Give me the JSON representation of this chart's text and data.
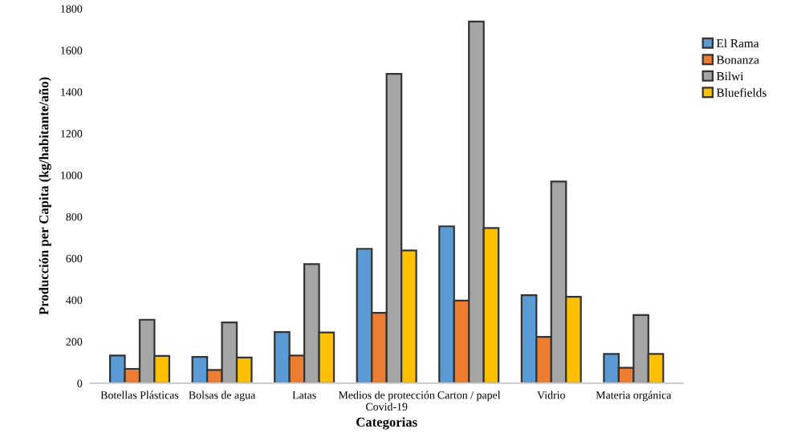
{
  "chart_data": {
    "type": "bar",
    "xlabel": "Categorias",
    "ylabel": "Producción per Capita (kg/habitante/año)",
    "categories": [
      "Botellas Plásticas",
      "Bolsas de agua",
      "Latas",
      "Medios de protección\nCovid-19",
      "Carton / papel",
      "Vidrio",
      "Materia orgánica"
    ],
    "series": [
      {
        "name": "El Rama",
        "color": "#5b9bd5",
        "values": [
          133,
          126,
          246,
          646,
          754,
          423,
          141
        ]
      },
      {
        "name": "Bonanza",
        "color": "#ed7d31",
        "values": [
          69,
          64,
          133,
          338,
          397,
          223,
          74
        ]
      },
      {
        "name": "Bilwi",
        "color": "#a5a5a5",
        "values": [
          305,
          292,
          572,
          1487,
          1738,
          969,
          328
        ]
      },
      {
        "name": "Bluefields",
        "color": "#ffc000",
        "values": [
          131,
          123,
          244,
          638,
          746,
          415,
          141
        ]
      }
    ],
    "ylim": [
      0,
      1800
    ],
    "yticks": [
      0,
      200,
      400,
      600,
      800,
      1000,
      1200,
      1400,
      1600,
      1800
    ],
    "grid": false,
    "legend": "top right"
  }
}
